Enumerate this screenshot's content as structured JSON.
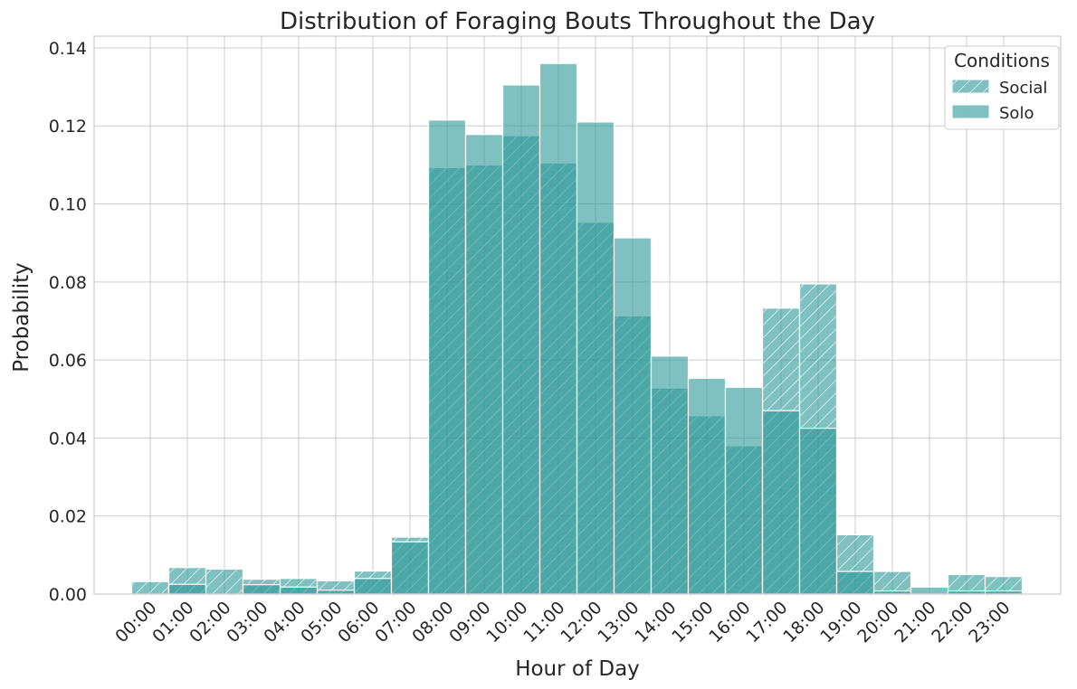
{
  "chart_data": {
    "type": "bar",
    "title": "Distribution of Foraging Bouts Throughout the Day",
    "xlabel": "Hour of Day",
    "ylabel": "Probability",
    "ylim": [
      0,
      0.143
    ],
    "yticks": [
      "0.00",
      "0.02",
      "0.04",
      "0.06",
      "0.08",
      "0.10",
      "0.12",
      "0.14"
    ],
    "ytick_values": [
      0,
      0.02,
      0.04,
      0.06,
      0.08,
      0.1,
      0.12,
      0.14
    ],
    "categories": [
      "00:00",
      "01:00",
      "02:00",
      "03:00",
      "04:00",
      "05:00",
      "06:00",
      "07:00",
      "08:00",
      "09:00",
      "10:00",
      "11:00",
      "12:00",
      "13:00",
      "14:00",
      "15:00",
      "16:00",
      "17:00",
      "18:00",
      "19:00",
      "20:00",
      "21:00",
      "22:00",
      "23:00"
    ],
    "series": [
      {
        "name": "Social",
        "hatched": true,
        "values": [
          0.0032,
          0.0068,
          0.0064,
          0.0038,
          0.004,
          0.0034,
          0.0059,
          0.0146,
          0.1093,
          0.11,
          0.1175,
          0.1105,
          0.0953,
          0.0713,
          0.0528,
          0.0457,
          0.038,
          0.0733,
          0.0795,
          0.0152,
          0.0058,
          0.0,
          0.005,
          0.0045
        ]
      },
      {
        "name": "Solo",
        "hatched": false,
        "values": [
          0.0,
          0.0025,
          0.0,
          0.0024,
          0.0018,
          0.001,
          0.004,
          0.0134,
          0.1215,
          0.1178,
          0.1305,
          0.136,
          0.121,
          0.0913,
          0.061,
          0.0553,
          0.053,
          0.047,
          0.0425,
          0.0058,
          0.0008,
          0.0018,
          0.0008,
          0.0008
        ]
      }
    ],
    "legend": {
      "title": "Conditions",
      "placement": "top-right"
    },
    "grid": true,
    "colors": {
      "bar": "#2a9896",
      "edge": "#ffffff",
      "grid": "#cccccc",
      "text": "#262626"
    }
  }
}
